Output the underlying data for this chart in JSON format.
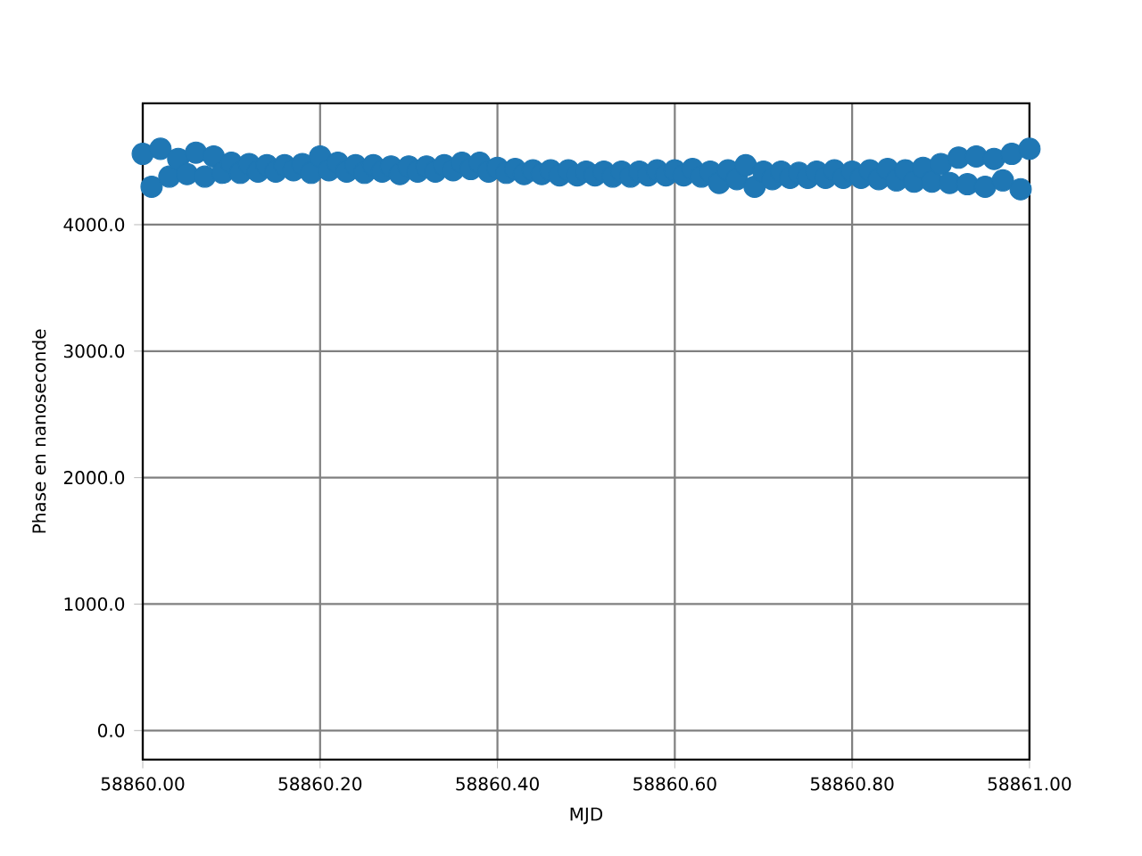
{
  "chart_data": {
    "type": "scatter",
    "xlabel": "MJD",
    "ylabel": "Phase en nanoseconde",
    "x": [
      58860.0,
      58860.01,
      58860.02,
      58860.03,
      58860.04,
      58860.05,
      58860.06,
      58860.07,
      58860.08,
      58860.09,
      58860.1,
      58860.11,
      58860.12,
      58860.13,
      58860.14,
      58860.15,
      58860.16,
      58860.17,
      58860.18,
      58860.19,
      58860.2,
      58860.21,
      58860.22,
      58860.23,
      58860.24,
      58860.25,
      58860.26,
      58860.27,
      58860.28,
      58860.29,
      58860.3,
      58860.31,
      58860.32,
      58860.33,
      58860.34,
      58860.35,
      58860.36,
      58860.37,
      58860.38,
      58860.39,
      58860.4,
      58860.41,
      58860.42,
      58860.43,
      58860.44,
      58860.45,
      58860.46,
      58860.47,
      58860.48,
      58860.49,
      58860.5,
      58860.51,
      58860.52,
      58860.53,
      58860.54,
      58860.55,
      58860.56,
      58860.57,
      58860.58,
      58860.59,
      58860.6,
      58860.61,
      58860.62,
      58860.63,
      58860.64,
      58860.65,
      58860.66,
      58860.67,
      58860.68,
      58860.69,
      58860.7,
      58860.71,
      58860.72,
      58860.73,
      58860.74,
      58860.75,
      58860.76,
      58860.77,
      58860.78,
      58860.79,
      58860.8,
      58860.81,
      58860.82,
      58860.83,
      58860.84,
      58860.85,
      58860.86,
      58860.87,
      58860.88,
      58860.89,
      58860.9,
      58860.91,
      58860.92,
      58860.93,
      58860.94,
      58860.95,
      58860.96,
      58860.97,
      58860.98,
      58860.99,
      58861.0
    ],
    "values": [
      4560,
      4300,
      4600,
      4380,
      4520,
      4400,
      4570,
      4380,
      4540,
      4410,
      4490,
      4410,
      4480,
      4420,
      4470,
      4420,
      4470,
      4430,
      4480,
      4410,
      4540,
      4430,
      4490,
      4420,
      4470,
      4410,
      4470,
      4420,
      4460,
      4400,
      4460,
      4420,
      4460,
      4420,
      4470,
      4430,
      4490,
      4440,
      4490,
      4420,
      4450,
      4410,
      4440,
      4400,
      4430,
      4400,
      4430,
      4390,
      4430,
      4390,
      4420,
      4390,
      4420,
      4380,
      4420,
      4380,
      4420,
      4390,
      4430,
      4390,
      4430,
      4390,
      4440,
      4380,
      4420,
      4330,
      4430,
      4360,
      4470,
      4300,
      4420,
      4360,
      4420,
      4370,
      4410,
      4370,
      4420,
      4370,
      4430,
      4370,
      4420,
      4370,
      4430,
      4360,
      4440,
      4350,
      4430,
      4340,
      4450,
      4340,
      4480,
      4330,
      4530,
      4320,
      4540,
      4300,
      4520,
      4350,
      4560,
      4280,
      4600
    ],
    "color": "#1f77b4",
    "marker": "circle",
    "grid": true,
    "xlim": [
      58860.0,
      58861.0
    ],
    "ylim": [
      -230,
      4960
    ],
    "xticks": [
      {
        "value": 58860.0,
        "label": "58860.00"
      },
      {
        "value": 58860.2,
        "label": "58860.20"
      },
      {
        "value": 58860.4,
        "label": "58860.40"
      },
      {
        "value": 58860.6,
        "label": "58860.60"
      },
      {
        "value": 58860.8,
        "label": "58860.80"
      },
      {
        "value": 58861.0,
        "label": "58861.00"
      }
    ],
    "yticks": [
      {
        "value": 0,
        "label": "0.0"
      },
      {
        "value": 1000,
        "label": "1000.0"
      },
      {
        "value": 2000,
        "label": "2000.0"
      },
      {
        "value": 3000,
        "label": "3000.0"
      },
      {
        "value": 4000,
        "label": "4000.0"
      }
    ]
  }
}
